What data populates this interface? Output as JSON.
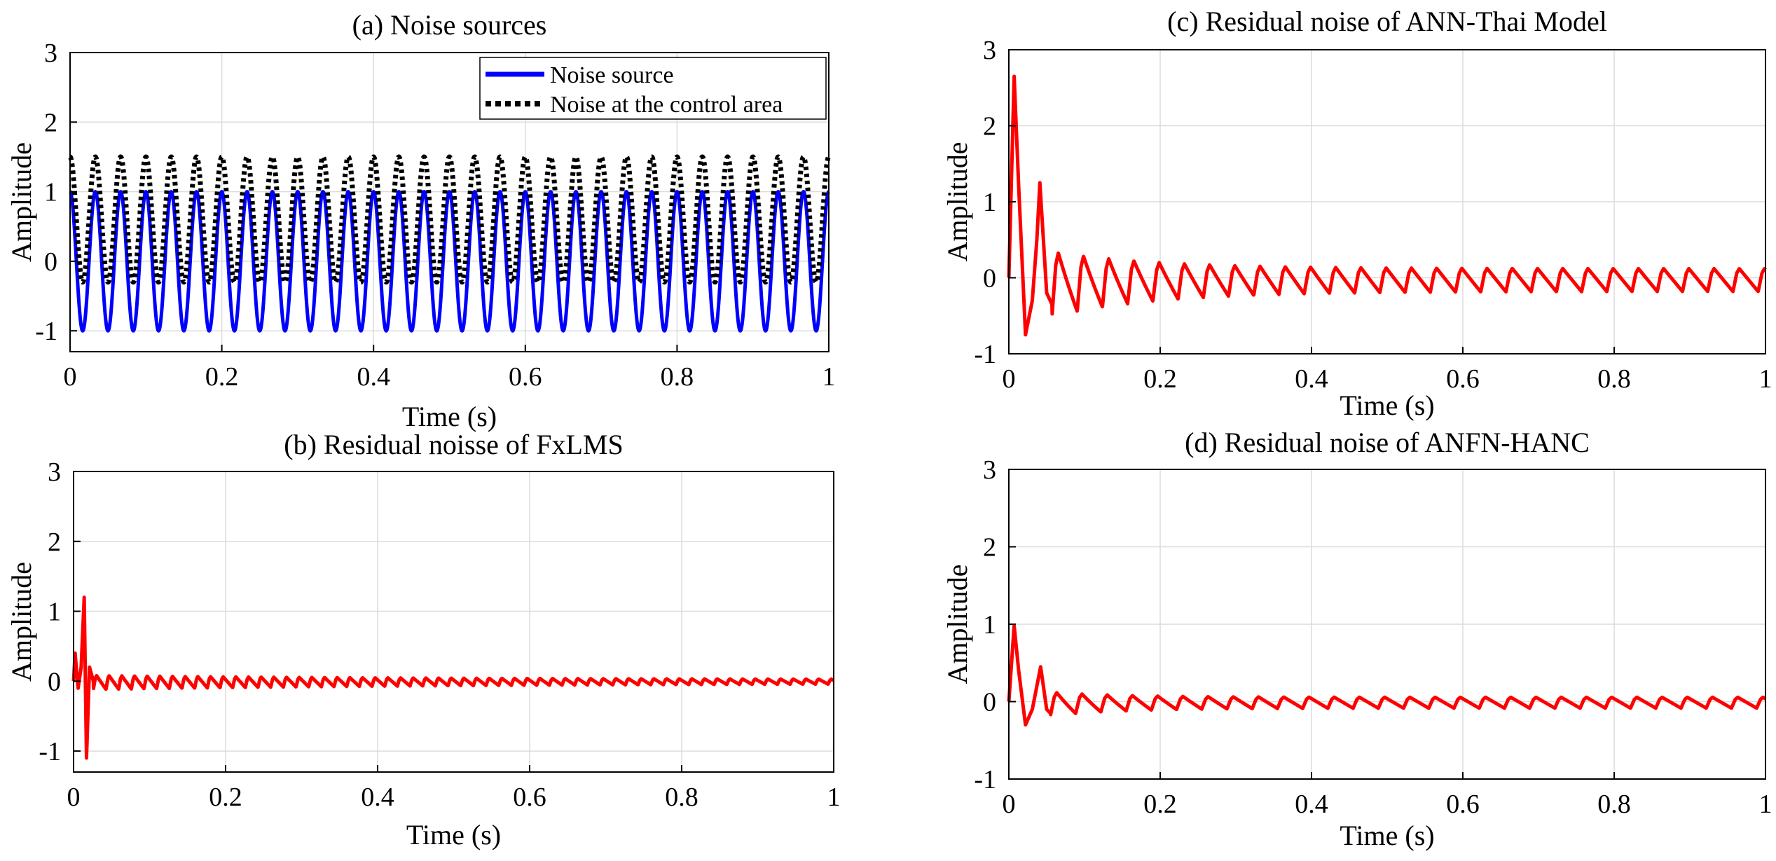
{
  "figure": {
    "background": "#ffffff",
    "grid_color": "#dcdcdc"
  },
  "chart_data": [
    {
      "id": "a",
      "type": "line",
      "title": "(a) Noise sources",
      "xlabel": "Time (s)",
      "ylabel": "Amplitude",
      "xlim": [
        0,
        1
      ],
      "ylim": [
        -1.3,
        3
      ],
      "xticks": [
        0,
        0.2,
        0.4,
        0.6,
        0.8,
        1
      ],
      "xtick_labels": [
        "0",
        "0.2",
        "0.4",
        "0.6",
        "0.8",
        "1"
      ],
      "yticks": [
        -1,
        0,
        1,
        2,
        3
      ],
      "ytick_labels": [
        "-1",
        "0",
        "1",
        "2",
        "3"
      ],
      "grid": true,
      "legend": {
        "position": "top-right"
      },
      "series": [
        {
          "name": "Noise source",
          "color": "#0000ff",
          "style": "solid",
          "model": {
            "kind": "sine",
            "frequency_hz": 30,
            "amplitude": 1,
            "offset": 0,
            "phase_deg": 90
          }
        },
        {
          "name": "Noise at the control area",
          "color": "#000000",
          "style": "dotted",
          "model": {
            "kind": "sine",
            "frequency_hz": 30,
            "amplitude": 0.9,
            "offset": 0.6,
            "phase_deg": 90
          }
        }
      ]
    },
    {
      "id": "b",
      "type": "line",
      "title": "(b) Residual noisse of FxLMS",
      "xlabel": "Time (s)",
      "ylabel": "Amplitude",
      "xlim": [
        0,
        1
      ],
      "ylim": [
        -1.3,
        3
      ],
      "xticks": [
        0,
        0.2,
        0.4,
        0.6,
        0.8,
        1
      ],
      "xtick_labels": [
        "0",
        "0.2",
        "0.4",
        "0.6",
        "0.8",
        "1"
      ],
      "yticks": [
        -1,
        0,
        1,
        2,
        3
      ],
      "ytick_labels": [
        "-1",
        "0",
        "1",
        "2",
        "3"
      ],
      "grid": true,
      "series": [
        {
          "color": "#ff0000",
          "style": "solid",
          "model": {
            "kind": "residual",
            "points": [
              [
                0,
                0
              ],
              [
                0.002,
                0.4
              ],
              [
                0.006,
                -0.1
              ],
              [
                0.01,
                0.2
              ],
              [
                0.014,
                1.2
              ],
              [
                0.017,
                -1.1
              ],
              [
                0.021,
                0.2
              ],
              [
                0.026,
                0
              ]
            ],
            "start": 0.026,
            "frequency_hz": 60,
            "env_start": 0.2,
            "env_end": 0.05,
            "env_tau": 0.5,
            "env_floor": 0
          }
        }
      ]
    },
    {
      "id": "c",
      "type": "line",
      "title": "(c) Residual noise of ANN-Thai Model",
      "xlabel": "Time (s)",
      "ylabel": "Amplitude",
      "xlim": [
        0,
        1
      ],
      "ylim": [
        -1,
        3
      ],
      "xticks": [
        0,
        0.2,
        0.4,
        0.6,
        0.8,
        1
      ],
      "xtick_labels": [
        "0",
        "0.2",
        "0.4",
        "0.6",
        "0.8",
        "1"
      ],
      "yticks": [
        -1,
        0,
        1,
        2,
        3
      ],
      "ytick_labels": [
        "-1",
        "0",
        "1",
        "2",
        "3"
      ],
      "grid": true,
      "series": [
        {
          "color": "#ff0000",
          "style": "solid",
          "model": {
            "kind": "residual",
            "points": [
              [
                0,
                0
              ],
              [
                0.007,
                2.65
              ],
              [
                0.013,
                1.2
              ],
              [
                0.022,
                -0.75
              ],
              [
                0.031,
                -0.3
              ],
              [
                0.037,
                0.5
              ],
              [
                0.041,
                1.25
              ],
              [
                0.05,
                -0.2
              ],
              [
                0.057,
                -0.35
              ]
            ],
            "start": 0.057,
            "frequency_hz": 30,
            "env_start": 0.85,
            "env_end": 0.3,
            "env_tau": 0.14,
            "env_floor": 0.2
          }
        }
      ]
    },
    {
      "id": "d",
      "type": "line",
      "title": "(d) Residual noise of ANFN-HANC",
      "xlabel": "Time (s)",
      "ylabel": "Amplitude",
      "xlim": [
        0,
        1
      ],
      "ylim": [
        -1,
        3
      ],
      "xticks": [
        0,
        0.2,
        0.4,
        0.6,
        0.8,
        1
      ],
      "xtick_labels": [
        "0",
        "0.2",
        "0.4",
        "0.6",
        "0.8",
        "1"
      ],
      "yticks": [
        -1,
        0,
        1,
        2,
        3
      ],
      "ytick_labels": [
        "-1",
        "0",
        "1",
        "2",
        "3"
      ],
      "grid": true,
      "series": [
        {
          "color": "#ff0000",
          "style": "solid",
          "model": {
            "kind": "residual",
            "points": [
              [
                0,
                0
              ],
              [
                0.007,
                0.98
              ],
              [
                0.013,
                0.4
              ],
              [
                0.022,
                -0.3
              ],
              [
                0.031,
                -0.1
              ],
              [
                0.037,
                0.2
              ],
              [
                0.042,
                0.45
              ],
              [
                0.05,
                -0.1
              ],
              [
                0.055,
                -0.15
              ]
            ],
            "start": 0.055,
            "frequency_hz": 30,
            "env_start": 0.3,
            "env_end": 0.14,
            "env_tau": 0.1,
            "env_floor": 0.15
          }
        }
      ]
    }
  ]
}
